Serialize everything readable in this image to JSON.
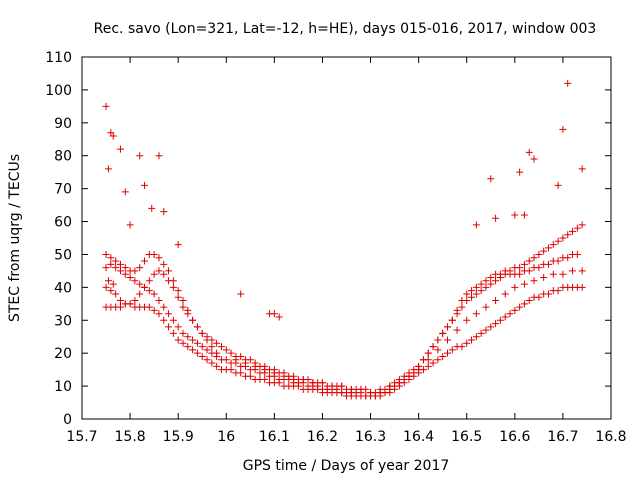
{
  "chart_data": {
    "type": "scatter",
    "title": "Rec. savo (Lon=321, Lat=-12, h=HE), days 015-016, 2017, window 003",
    "xlabel": "GPS time / Days of year 2017",
    "ylabel": "STEC from uqrg / TECUs",
    "xlim": [
      15.7,
      16.8
    ],
    "ylim": [
      0,
      110
    ],
    "xticks": [
      "15.7",
      "15.8",
      "15.9",
      "16",
      "16.1",
      "16.2",
      "16.3",
      "16.4",
      "16.5",
      "16.6",
      "16.7",
      "16.8"
    ],
    "yticks": [
      "0",
      "10",
      "20",
      "30",
      "40",
      "50",
      "60",
      "70",
      "80",
      "90",
      "100",
      "110"
    ],
    "grid": false,
    "legend": "none",
    "marker": "plus",
    "color": "#e00000",
    "series": [
      {
        "x": [
          15.75,
          15.755,
          15.76,
          15.765,
          15.77,
          15.78,
          15.79,
          15.8,
          15.81,
          15.82,
          15.83,
          15.84,
          15.85,
          15.86,
          15.87,
          15.88,
          15.89,
          15.9,
          15.91,
          15.92,
          15.93,
          15.94,
          15.95,
          15.96,
          15.97,
          15.98,
          15.99,
          16.0,
          16.01,
          16.02,
          16.03,
          16.04,
          16.05,
          16.06,
          16.07,
          16.08,
          16.09,
          16.1,
          16.11,
          16.12,
          16.13,
          16.14,
          16.15,
          16.16,
          16.17,
          16.18,
          16.19,
          16.2,
          16.21,
          16.22,
          16.23,
          16.24,
          16.25,
          16.26,
          16.27,
          16.28,
          16.29,
          16.3,
          16.31,
          16.32,
          16.33,
          16.34,
          16.35,
          16.36,
          16.37,
          16.38,
          16.39,
          16.4,
          16.41,
          16.42,
          16.43,
          16.44,
          16.45,
          16.46,
          16.47,
          16.48,
          16.49,
          16.5,
          16.51,
          16.52,
          16.53,
          16.54,
          16.55,
          16.56,
          16.57,
          16.58,
          16.59,
          16.6,
          16.61,
          16.62,
          16.63,
          16.64,
          16.65,
          16.66,
          16.67,
          16.68,
          16.69,
          16.7,
          16.71,
          16.72,
          16.73,
          16.74
        ],
        "y": [
          40,
          42,
          39,
          41,
          38,
          36,
          35,
          35,
          34,
          34,
          34,
          34,
          33,
          32,
          30,
          28,
          26,
          24,
          23,
          22,
          21,
          20,
          19,
          18,
          17,
          16,
          15,
          15,
          15,
          14,
          14,
          13,
          13,
          12,
          12,
          12,
          11,
          11,
          11,
          10,
          10,
          10,
          10,
          9,
          9,
          9,
          9,
          8,
          8,
          8,
          8,
          8,
          7,
          7,
          7,
          7,
          7,
          7,
          7,
          7,
          8,
          8,
          9,
          10,
          11,
          12,
          13,
          14,
          15,
          16,
          17,
          18,
          19,
          20,
          21,
          22,
          22,
          23,
          24,
          25,
          26,
          27,
          28,
          29,
          30,
          31,
          32,
          33,
          34,
          35,
          36,
          37,
          37,
          38,
          38,
          39,
          39,
          40,
          40,
          40,
          40,
          40
        ]
      },
      {
        "x": [
          15.75,
          15.76,
          15.77,
          15.78,
          15.79,
          15.8,
          15.81,
          15.82,
          15.83,
          15.84,
          15.85,
          15.86,
          15.87,
          15.88,
          15.89,
          15.9,
          15.91,
          15.92,
          15.93,
          15.94,
          15.95,
          15.96,
          15.97,
          15.98,
          15.99,
          16.0,
          16.01,
          16.02,
          16.03,
          16.04,
          16.05,
          16.06,
          16.07,
          16.08,
          16.09,
          16.1,
          16.11,
          16.12,
          16.13,
          16.14,
          16.15,
          16.16,
          16.17,
          16.18,
          16.19,
          16.2,
          16.21,
          16.22,
          16.23,
          16.24,
          16.25,
          16.26,
          16.27,
          16.28,
          16.29,
          16.3,
          16.31,
          16.32,
          16.33,
          16.34,
          16.35,
          16.36,
          16.37,
          16.38,
          16.39,
          16.4,
          16.41,
          16.42,
          16.43,
          16.44,
          16.45,
          16.46,
          16.47,
          16.48,
          16.49,
          16.5,
          16.51,
          16.52,
          16.53,
          16.54,
          16.55,
          16.56,
          16.57,
          16.58,
          16.59,
          16.6,
          16.61,
          16.62,
          16.63,
          16.64,
          16.65,
          16.66,
          16.67,
          16.68,
          16.69,
          16.7,
          16.71,
          16.72,
          16.73
        ],
        "y": [
          46,
          47,
          46,
          45,
          44,
          43,
          42,
          41,
          40,
          39,
          38,
          36,
          34,
          32,
          30,
          28,
          26,
          25,
          24,
          23,
          22,
          21,
          20,
          19,
          18,
          18,
          17,
          17,
          16,
          16,
          15,
          15,
          14,
          14,
          13,
          13,
          12,
          12,
          12,
          11,
          11,
          11,
          10,
          10,
          10,
          9,
          9,
          9,
          9,
          8,
          8,
          8,
          8,
          8,
          7,
          7,
          7,
          8,
          8,
          9,
          10,
          11,
          12,
          13,
          14,
          16,
          18,
          20,
          22,
          24,
          26,
          28,
          30,
          32,
          34,
          36,
          37,
          38,
          39,
          40,
          41,
          42,
          43,
          44,
          44,
          44,
          44,
          45,
          45,
          46,
          46,
          47,
          47,
          48,
          48,
          49,
          49,
          50,
          50
        ]
      },
      {
        "x": [
          15.75,
          15.76,
          15.77,
          15.78,
          15.79,
          15.8,
          15.81,
          15.82,
          15.83,
          15.84,
          15.85,
          15.86,
          15.87,
          15.88,
          15.89,
          15.9,
          15.91,
          15.92,
          15.93,
          15.94,
          15.95,
          15.96,
          15.97,
          15.98,
          15.99,
          16.0,
          16.01,
          16.02,
          16.03,
          16.04,
          16.05,
          16.06,
          16.07,
          16.08,
          16.09,
          16.1,
          16.11,
          16.12,
          16.13,
          16.14,
          16.15,
          16.16,
          16.17,
          16.18,
          16.19,
          16.2,
          16.21,
          16.22,
          16.23,
          16.24,
          16.25,
          16.26,
          16.27,
          16.28,
          16.29,
          16.3,
          16.31,
          16.32,
          16.33,
          16.34,
          16.35,
          16.36,
          16.37,
          16.38,
          16.39,
          16.4,
          16.41,
          16.42,
          16.43,
          16.44,
          16.45,
          16.46,
          16.47,
          16.48,
          16.49,
          16.5,
          16.51,
          16.52,
          16.53,
          16.54,
          16.55,
          16.56,
          16.57,
          16.58,
          16.59,
          16.6,
          16.61,
          16.62,
          16.63,
          16.64,
          16.65,
          16.66,
          16.67,
          16.68,
          16.69,
          16.7,
          16.71,
          16.72,
          16.73,
          16.74
        ],
        "y": [
          50,
          49,
          48,
          47,
          46,
          45,
          45,
          46,
          48,
          50,
          50,
          49,
          47,
          45,
          42,
          39,
          36,
          33,
          30,
          28,
          26,
          25,
          24,
          23,
          22,
          21,
          20,
          19,
          19,
          18,
          18,
          17,
          16,
          16,
          15,
          15,
          14,
          14,
          13,
          13,
          12,
          12,
          12,
          11,
          11,
          11,
          10,
          10,
          10,
          10,
          9,
          9,
          9,
          9,
          9,
          8,
          8,
          8,
          9,
          10,
          11,
          12,
          13,
          14,
          15,
          16,
          18,
          20,
          22,
          24,
          26,
          28,
          30,
          33,
          36,
          38,
          39,
          40,
          41,
          42,
          43,
          44,
          44,
          45,
          45,
          46,
          46,
          47,
          48,
          49,
          50,
          51,
          52,
          53,
          54,
          55,
          56,
          57,
          58,
          59
        ]
      },
      {
        "x": [
          15.75,
          15.76,
          15.77,
          15.78,
          15.79,
          15.8,
          15.81,
          15.82,
          15.83,
          15.84,
          15.85,
          15.86,
          15.87,
          15.88,
          15.89,
          15.9,
          15.91,
          15.92,
          15.93,
          15.94,
          15.95,
          15.96,
          15.97,
          15.98,
          16.02,
          16.04,
          16.06,
          16.08,
          16.1,
          16.12,
          16.14,
          16.16,
          16.18,
          16.2,
          16.22,
          16.24,
          16.26,
          16.28,
          16.3,
          16.32,
          16.34,
          16.36,
          16.38,
          16.4,
          16.42,
          16.44,
          16.46,
          16.48,
          16.5,
          16.52,
          16.54,
          16.56,
          16.58,
          16.6,
          16.62,
          16.64,
          16.66,
          16.68,
          16.7,
          16.72,
          16.74
        ],
        "y": [
          34,
          34,
          34,
          34,
          35,
          35,
          36,
          38,
          40,
          42,
          44,
          45,
          44,
          42,
          40,
          37,
          34,
          32,
          30,
          28,
          26,
          24,
          22,
          20,
          18,
          17,
          16,
          15,
          14,
          13,
          12,
          12,
          11,
          11,
          10,
          10,
          9,
          9,
          8,
          9,
          10,
          11,
          13,
          15,
          18,
          21,
          24,
          27,
          30,
          32,
          34,
          36,
          38,
          40,
          41,
          42,
          43,
          44,
          44,
          45,
          45
        ]
      },
      {
        "x": [
          15.75,
          15.755,
          15.76,
          15.765,
          15.78,
          15.79,
          15.8,
          15.82,
          15.83,
          15.845,
          15.86,
          15.87,
          15.9,
          16.03,
          16.09,
          16.1,
          16.11,
          16.52,
          16.55,
          16.56,
          16.6,
          16.61,
          16.62,
          16.63,
          16.64,
          16.69,
          16.7,
          16.71,
          16.74
        ],
        "y": [
          95,
          76,
          87,
          86,
          82,
          69,
          59,
          80,
          71,
          64,
          80,
          63,
          53,
          38,
          32,
          32,
          31,
          59,
          73,
          61,
          62,
          75,
          62,
          81,
          79,
          71,
          88,
          102,
          76
        ]
      }
    ]
  }
}
